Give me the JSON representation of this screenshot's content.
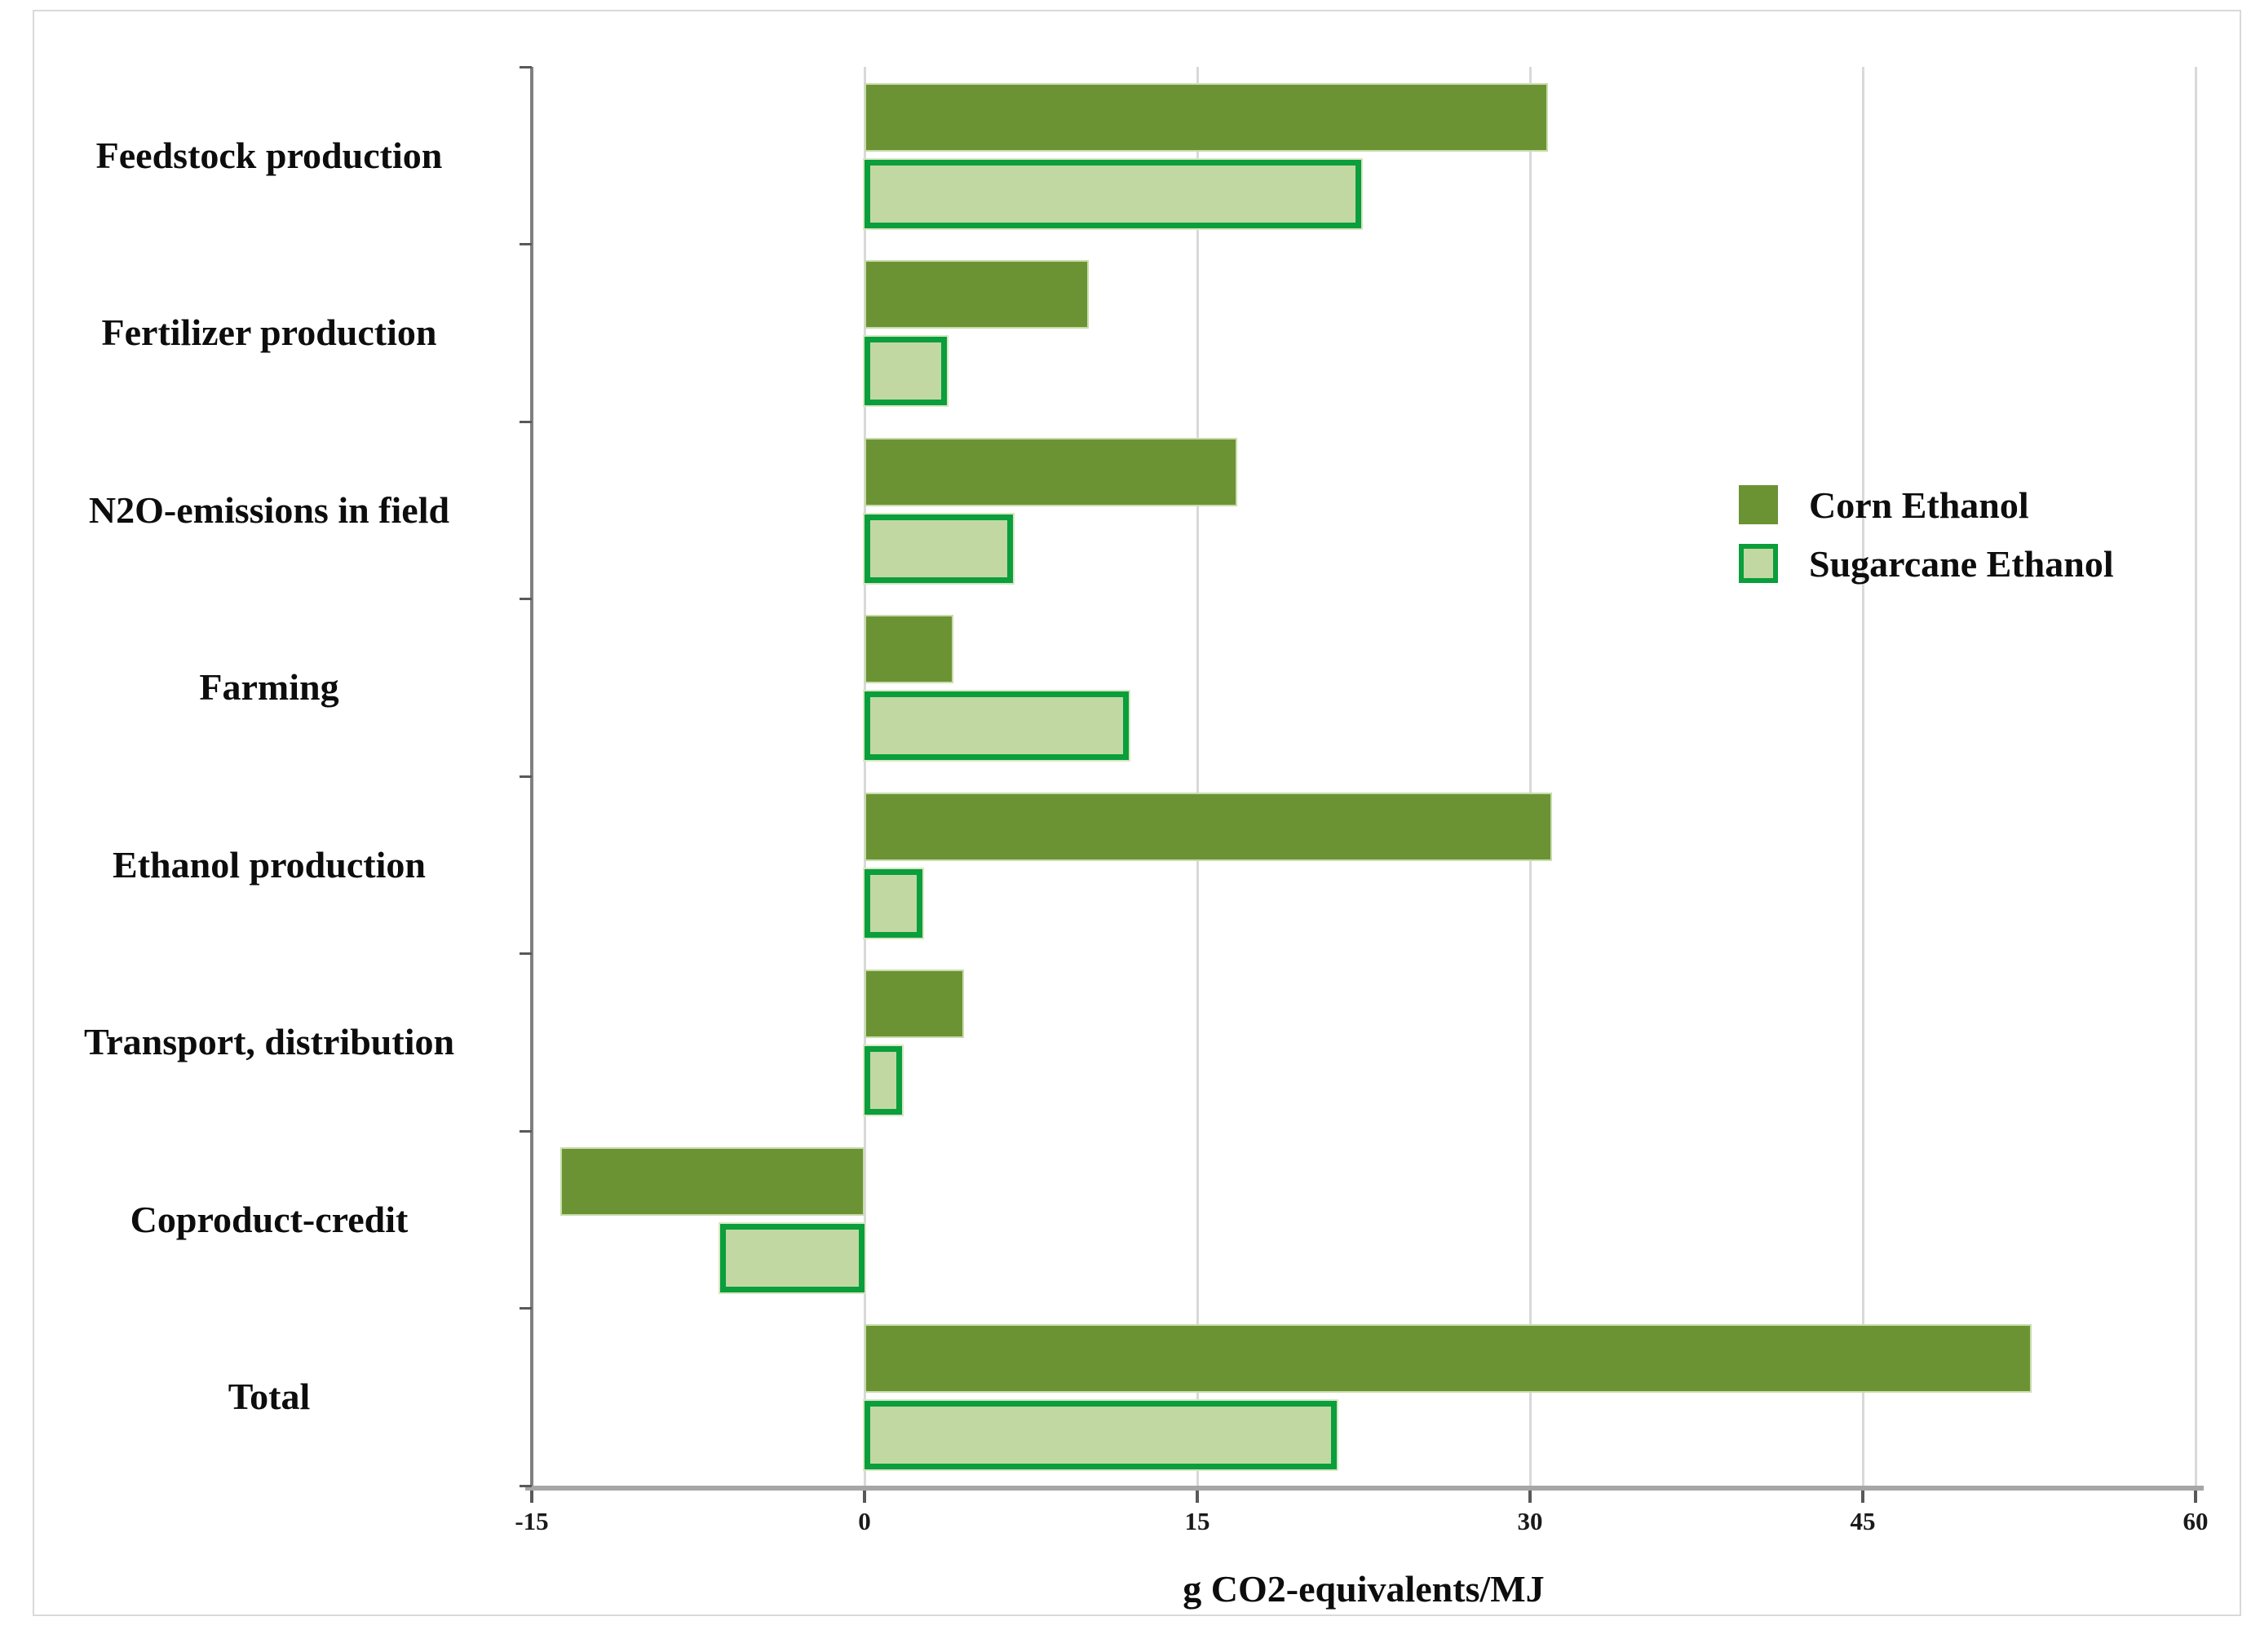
{
  "chart_data": {
    "type": "bar",
    "orientation": "horizontal",
    "title": "",
    "xlabel": "g CO2-equivalents/MJ",
    "ylabel": "",
    "xlim": [
      -15,
      60
    ],
    "xticks": [
      -15,
      0,
      15,
      30,
      45,
      60
    ],
    "grid": true,
    "legend_position": "center-right",
    "categories": [
      "Feedstock production",
      "Fertilizer production",
      "N2O-emissions in field",
      "Farming",
      "Ethanol production",
      "Transport, distribution",
      "Coproduct-credit",
      "Total"
    ],
    "series": [
      {
        "name": "Corn Ethanol",
        "color": "#6b9334",
        "values": [
          30.8,
          10.1,
          16.8,
          4.0,
          31.0,
          4.5,
          -13.7,
          52.6
        ]
      },
      {
        "name": "Sugarcane Ethanol",
        "color": "#c2d8a2",
        "border_color": "#0a9e3c",
        "values": [
          22.4,
          3.7,
          6.7,
          11.9,
          2.6,
          1.7,
          -6.5,
          21.3
        ]
      }
    ]
  }
}
